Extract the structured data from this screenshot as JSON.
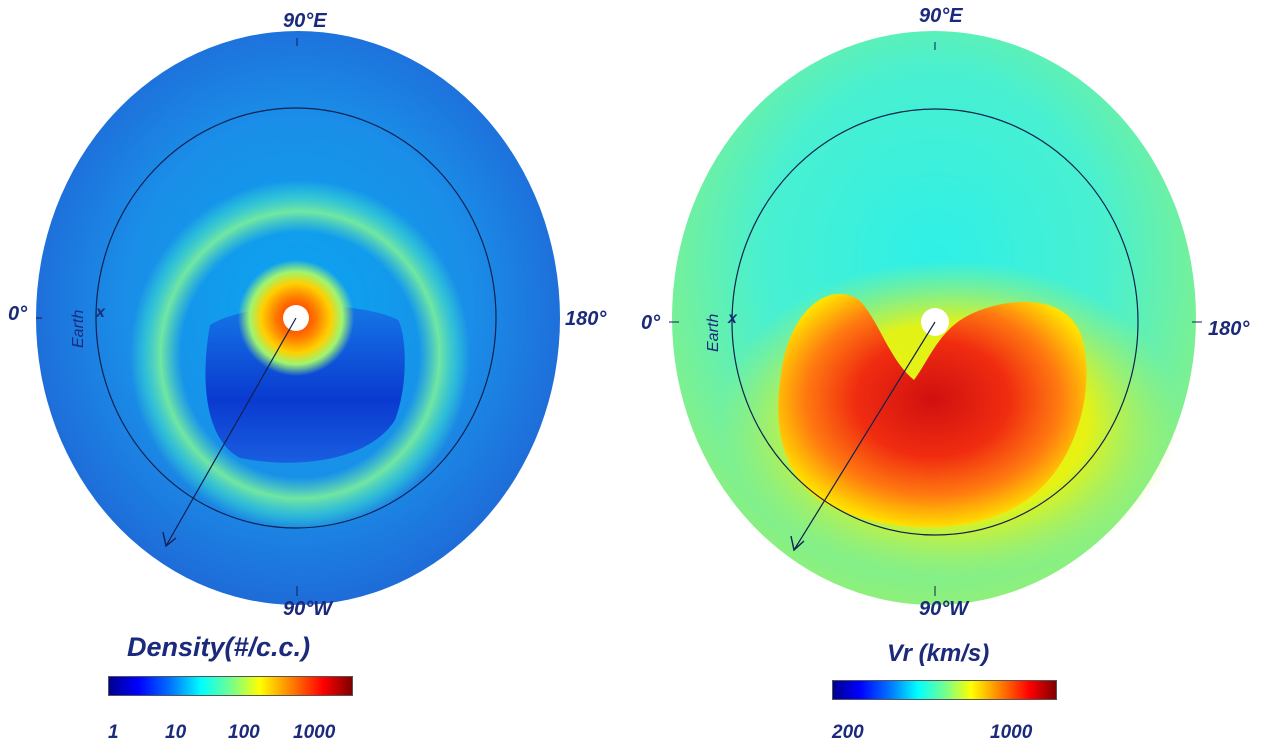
{
  "left_panel": {
    "labels": {
      "top": "90°E",
      "bottom": "90°W",
      "left": "0°",
      "right": "180°",
      "earth": "Earth",
      "earth_marker": "x"
    },
    "colorbar": {
      "title": "Density(#/c.c.)",
      "ticks": [
        "1",
        "10",
        "100",
        "1000"
      ]
    }
  },
  "right_panel": {
    "labels": {
      "top": "90°E",
      "bottom": "90°W",
      "left": "0°",
      "right": "180°",
      "earth": "Earth",
      "earth_marker": "x"
    },
    "colorbar": {
      "title": "Vr (km/s)",
      "ticks": [
        "200",
        "1000"
      ]
    }
  },
  "colors": {
    "label": "#1b2a7a",
    "colormap": "jet"
  }
}
